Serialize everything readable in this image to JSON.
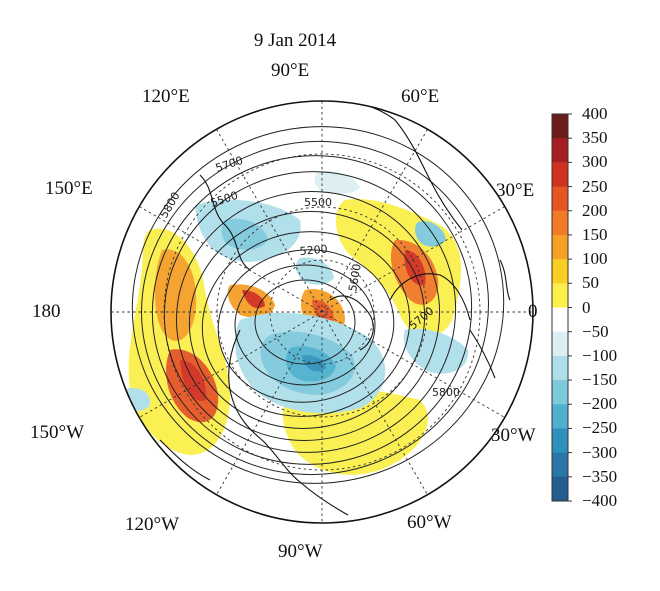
{
  "title": "9 Jan 2014",
  "longitude_labels": {
    "e90": "90°E",
    "e60": "60°E",
    "e30": "30°E",
    "zero": "0",
    "w30": "30°W",
    "w60": "60°W",
    "w90": "90°W",
    "w120": "120°W",
    "w150": "150°W",
    "d180": "180",
    "e150": "150°E",
    "e120": "120°E"
  },
  "contour_labels": [
    "5200",
    "5500",
    "5500",
    "5600",
    "5700",
    "5700",
    "5800",
    "5800"
  ],
  "colorbar": {
    "ticks": [
      "400",
      "350",
      "300",
      "250",
      "200",
      "150",
      "100",
      "50",
      "0",
      "−50",
      "−100",
      "−150",
      "−200",
      "−250",
      "−300",
      "−350",
      "−400"
    ],
    "colors": [
      "#6b1d1a",
      "#a51f22",
      "#d1301f",
      "#e55523",
      "#f07a25",
      "#f6a027",
      "#f9cf23",
      "#fbf04a",
      "#ffffff",
      "#ddeff4",
      "#aedfe9",
      "#7fc9dd",
      "#4fb0cf",
      "#2f92bd",
      "#2a76a8",
      "#235d8e"
    ]
  }
}
